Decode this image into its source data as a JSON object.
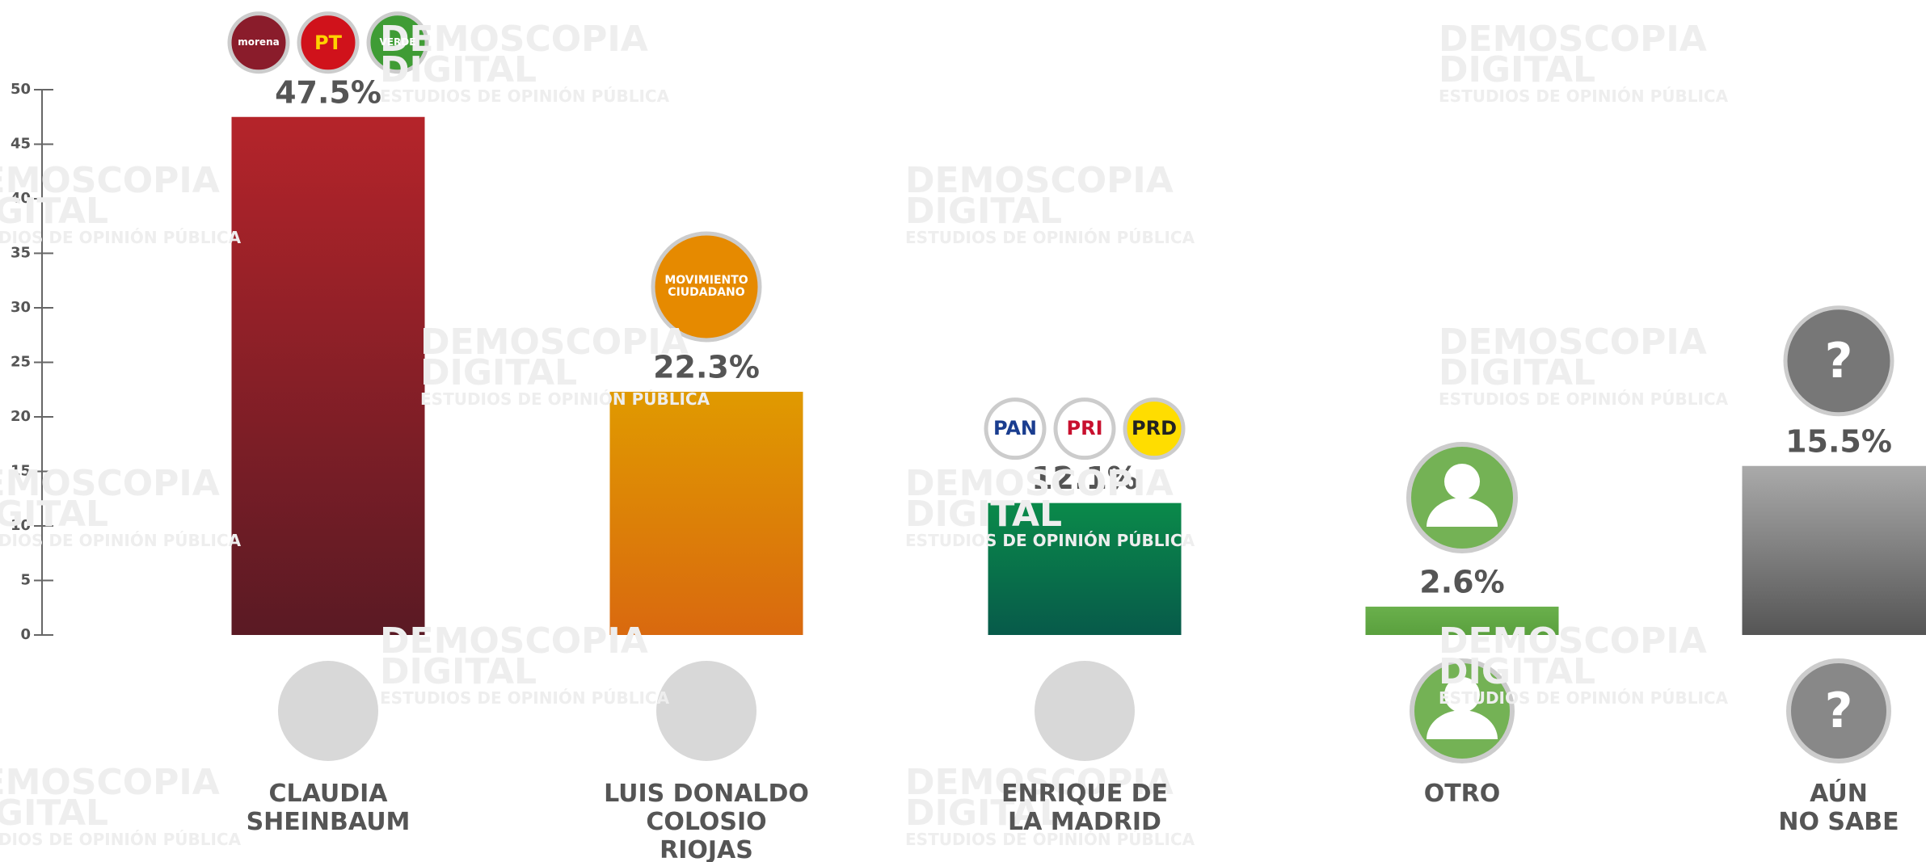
{
  "chart_data": {
    "type": "bar",
    "categories": [
      "CLAUDIA\nSHEINBAUM",
      "LUIS DONALDO\nCOLOSIO\nRIOJAS",
      "ENRIQUE DE\nLA MADRID",
      "OTRO",
      "AÚN\nNO SABE"
    ],
    "values": [
      47.5,
      22.3,
      12.1,
      2.6,
      15.5
    ],
    "value_labels": [
      "47.5%",
      "22.3%",
      "12.1%",
      "2.6%",
      "15.5%"
    ],
    "colors": [
      "#b5242a",
      "#e09a00",
      "#0a8a4a",
      "#6ab04c",
      "#aaaaaa"
    ],
    "colors_end": [
      "#5a1a24",
      "#d9690f",
      "#075a4a",
      "#5aa03e",
      "#555555"
    ],
    "ylim": [
      0,
      50
    ],
    "yticks": [
      0,
      5,
      10,
      15,
      20,
      25,
      30,
      35,
      40,
      45,
      50
    ],
    "logos": [
      [
        {
          "label": "morena",
          "color": "#8a1c2b",
          "text": "#ffffff"
        },
        {
          "label": "PT",
          "color": "#d0121b",
          "text": "#ffd200"
        },
        {
          "label": "VERDE",
          "color": "#3f9c35",
          "text": "#ffffff"
        }
      ],
      [
        {
          "label": "MOVIMIENTO\nCIUDADANO",
          "color": "#e68a00",
          "text": "#ffffff"
        }
      ],
      [
        {
          "label": "PAN",
          "color": "#ffffff",
          "text": "#1a3d8f"
        },
        {
          "label": "PRI",
          "color": "#ffffff",
          "text": "#c8102e"
        },
        {
          "label": "PRD",
          "color": "#ffdd00",
          "text": "#222222"
        }
      ],
      [],
      [
        {
          "label": "?",
          "color": "#777777",
          "text": "#ffffff"
        }
      ]
    ],
    "watermark": {
      "title": "DEMOSCOPIA\nDIGITAL",
      "subtitle": "ESTUDIOS DE OPINIÓN PÚBLICA"
    }
  }
}
